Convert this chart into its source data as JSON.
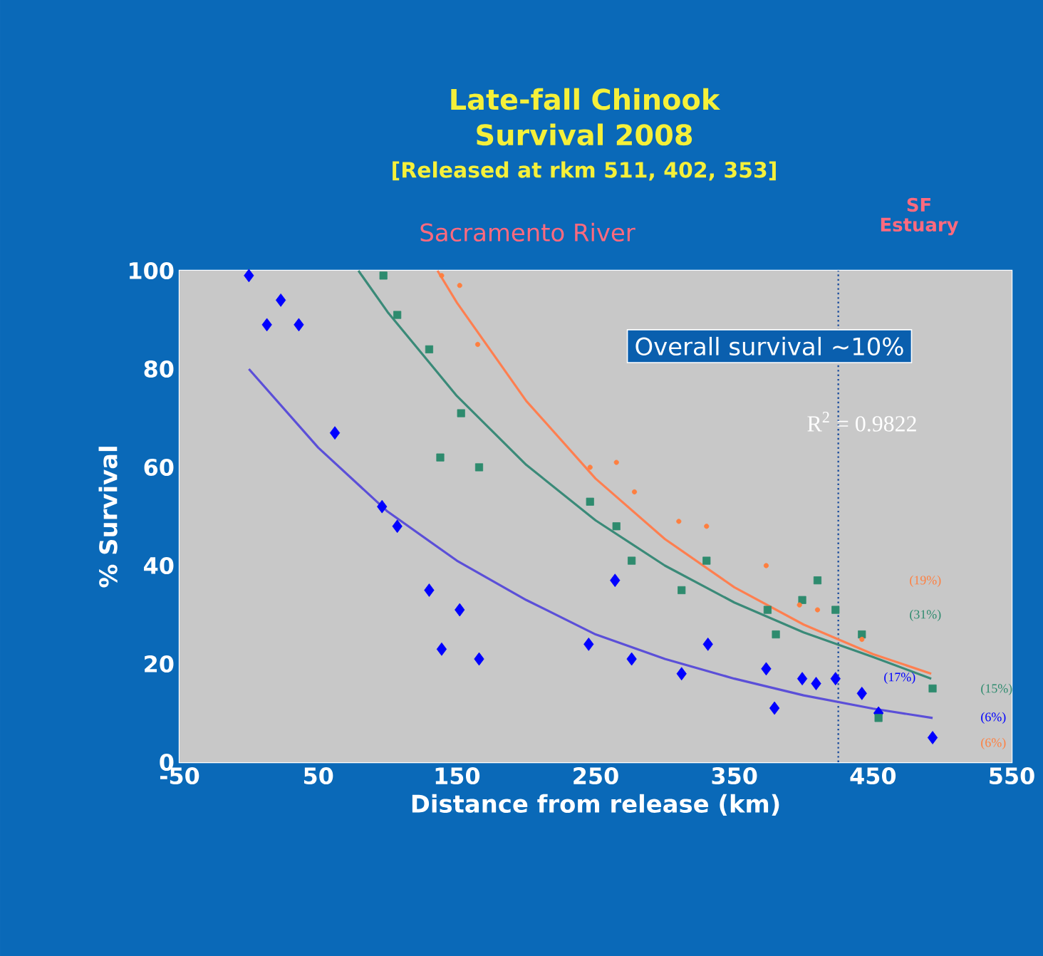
{
  "chart_data": {
    "type": "scatter",
    "title": "Late-fall Chinook Survival 2008",
    "subtitle": "[Released at rkm 511, 402, 353]",
    "xlabel": "Distance from release (km)",
    "ylabel": "% Survival",
    "xlim": [
      -50,
      550
    ],
    "xticks": [
      -50,
      50,
      150,
      250,
      350,
      450,
      550
    ],
    "ylim": [
      0,
      100
    ],
    "yticks": [
      0,
      20,
      40,
      60,
      80,
      100
    ],
    "ref_lines": [
      {
        "axis": "x",
        "value": 425,
        "color": "#1e4f9e",
        "line_style": "dotted"
      }
    ],
    "annotations": [
      "Sacramento River",
      "SF Estuary",
      "Overall survival ~10%",
      "R$^{2}$ = 0.9822",
      "(19%)",
      "(31%)",
      "(17%)",
      "(15%)",
      "(6%)",
      "(6%)"
    ],
    "series": [
      {
        "color": "#0000ff",
        "marker": "diamond",
        "x": [
          0,
          23,
          13,
          36,
          62,
          96,
          107,
          130,
          152,
          139,
          166,
          264,
          245,
          276,
          312,
          331,
          373,
          379,
          399,
          409,
          423,
          442,
          454,
          493
        ],
        "values": [
          99,
          94,
          89,
          89,
          67,
          52,
          48,
          35,
          31,
          23,
          21,
          37,
          24,
          21,
          18,
          24,
          19,
          11,
          17,
          16,
          17,
          14,
          10,
          5
        ]
      },
      {
        "color": "#2e8b6e",
        "marker": "square",
        "x": [
          97,
          107,
          130,
          153,
          138,
          166,
          246,
          265,
          276,
          330,
          312,
          374,
          380,
          399,
          410,
          423,
          442,
          454,
          493
        ],
        "values": [
          99,
          91,
          84,
          71,
          62,
          60,
          53,
          48,
          41,
          41,
          35,
          31,
          26,
          33,
          37,
          31,
          26,
          9,
          15
        ]
      },
      {
        "color": "#ff7f3f",
        "marker": "circle",
        "x": [
          139,
          152,
          165,
          246,
          265,
          278,
          310,
          330,
          373,
          397,
          410,
          442
        ],
        "values": [
          99,
          97,
          85,
          60,
          61,
          55,
          49,
          48,
          40,
          32,
          31,
          25
        ]
      },
      {
        "type": "line",
        "color": "#5b4fd8",
        "marker": "none",
        "x": [
          0,
          50,
          100,
          150,
          200,
          250,
          300,
          350,
          400,
          450,
          493
        ],
        "values": [
          80,
          64,
          51,
          41,
          33,
          26,
          21,
          17,
          13.6,
          10.9,
          9
        ]
      },
      {
        "type": "line",
        "color": "#3a8a78",
        "marker": "none",
        "x": [
          79,
          100,
          150,
          200,
          250,
          300,
          350,
          400,
          450,
          492
        ],
        "values": [
          100,
          91.6,
          74.5,
          60.5,
          49.2,
          40,
          32.5,
          26.4,
          21.4,
          17
        ]
      },
      {
        "type": "line",
        "color": "#ff7f50",
        "marker": "none",
        "x": [
          136,
          150,
          200,
          250,
          300,
          350,
          400,
          450,
          492
        ],
        "values": [
          100,
          93.5,
          73.5,
          57.7,
          45.4,
          35.6,
          28,
          22,
          18
        ]
      }
    ]
  }
}
